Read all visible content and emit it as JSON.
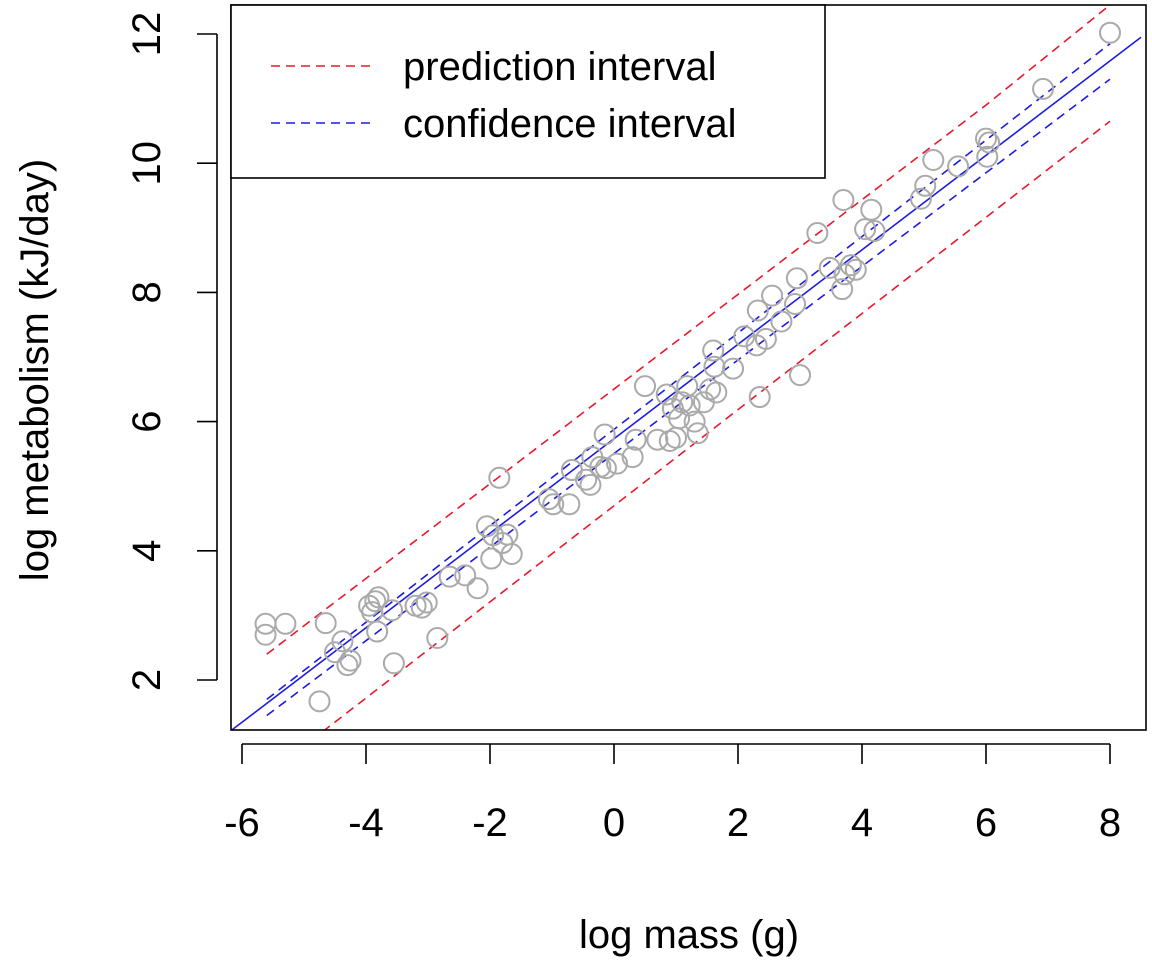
{
  "chart_data": {
    "type": "scatter",
    "title": "",
    "xlabel": "log mass (g)",
    "ylabel": "log metabolism (kJ/day)",
    "xlim": [
      -6.2,
      8.5
    ],
    "ylim": [
      1.2,
      12.45
    ],
    "xticks": [
      -6,
      -4,
      -2,
      0,
      2,
      4,
      6,
      8
    ],
    "yticks": [
      2,
      4,
      6,
      8,
      10,
      12
    ],
    "legend": {
      "position": "top-left",
      "entries": [
        {
          "label": "prediction interval",
          "color": "#e8192c",
          "style": "dashed"
        },
        {
          "label": "confidence interval",
          "color": "#1c1ce0",
          "style": "dashed"
        }
      ]
    },
    "colors": {
      "points": "#aaaaaa",
      "fit": "#1c1ce0",
      "confidence": "#1c1ce0",
      "prediction": "#e8192c"
    },
    "fit_line": {
      "x": [
        -6.2,
        8.5
      ],
      "y": [
        1.2,
        11.95
      ]
    },
    "confidence_band": {
      "upper": {
        "x": [
          -5.6,
          8.0
        ],
        "y": [
          1.7,
          11.85
        ]
      },
      "lower": {
        "x": [
          -5.6,
          8.0
        ],
        "y": [
          1.45,
          11.3
        ]
      }
    },
    "prediction_band": {
      "upper": {
        "x": [
          -5.6,
          6.0,
          8.0
        ],
        "y": [
          2.4,
          10.9,
          12.45
        ]
      },
      "lower": {
        "x": [
          -4.7,
          8.0
        ],
        "y": [
          1.2,
          10.65
        ]
      }
    },
    "points": [
      {
        "x": -5.62,
        "y": 2.87
      },
      {
        "x": -5.62,
        "y": 2.7
      },
      {
        "x": -5.3,
        "y": 2.87
      },
      {
        "x": -4.75,
        "y": 1.67
      },
      {
        "x": -4.65,
        "y": 2.88
      },
      {
        "x": -4.5,
        "y": 2.43
      },
      {
        "x": -4.38,
        "y": 2.6
      },
      {
        "x": -4.3,
        "y": 2.23
      },
      {
        "x": -4.25,
        "y": 2.3
      },
      {
        "x": -3.95,
        "y": 3.15
      },
      {
        "x": -3.9,
        "y": 3.05
      },
      {
        "x": -3.85,
        "y": 3.22
      },
      {
        "x": -3.8,
        "y": 3.28
      },
      {
        "x": -3.82,
        "y": 2.75
      },
      {
        "x": -3.58,
        "y": 3.08
      },
      {
        "x": -3.55,
        "y": 2.26
      },
      {
        "x": -3.2,
        "y": 3.15
      },
      {
        "x": -3.1,
        "y": 3.12
      },
      {
        "x": -3.02,
        "y": 3.2
      },
      {
        "x": -2.85,
        "y": 2.65
      },
      {
        "x": -2.65,
        "y": 3.6
      },
      {
        "x": -2.4,
        "y": 3.62
      },
      {
        "x": -2.2,
        "y": 3.42
      },
      {
        "x": -2.05,
        "y": 4.38
      },
      {
        "x": -1.98,
        "y": 3.88
      },
      {
        "x": -1.95,
        "y": 4.24
      },
      {
        "x": -1.85,
        "y": 5.13
      },
      {
        "x": -1.8,
        "y": 4.12
      },
      {
        "x": -1.72,
        "y": 4.25
      },
      {
        "x": -1.65,
        "y": 3.95
      },
      {
        "x": -1.05,
        "y": 4.8
      },
      {
        "x": -0.98,
        "y": 4.72
      },
      {
        "x": -0.72,
        "y": 4.72
      },
      {
        "x": -0.68,
        "y": 5.25
      },
      {
        "x": -0.45,
        "y": 5.1
      },
      {
        "x": -0.38,
        "y": 5.02
      },
      {
        "x": -0.35,
        "y": 5.45
      },
      {
        "x": -0.22,
        "y": 5.3
      },
      {
        "x": -0.15,
        "y": 5.8
      },
      {
        "x": -0.13,
        "y": 5.28
      },
      {
        "x": 0.05,
        "y": 5.35
      },
      {
        "x": 0.3,
        "y": 5.45
      },
      {
        "x": 0.35,
        "y": 5.72
      },
      {
        "x": 0.5,
        "y": 6.55
      },
      {
        "x": 0.7,
        "y": 5.72
      },
      {
        "x": 0.85,
        "y": 6.42
      },
      {
        "x": 0.9,
        "y": 5.7
      },
      {
        "x": 0.95,
        "y": 6.2
      },
      {
        "x": 1.0,
        "y": 5.75
      },
      {
        "x": 1.05,
        "y": 6.05
      },
      {
        "x": 1.1,
        "y": 6.3
      },
      {
        "x": 1.18,
        "y": 6.55
      },
      {
        "x": 1.22,
        "y": 6.25
      },
      {
        "x": 1.3,
        "y": 6.0
      },
      {
        "x": 1.35,
        "y": 5.82
      },
      {
        "x": 1.45,
        "y": 6.3
      },
      {
        "x": 1.55,
        "y": 6.5
      },
      {
        "x": 1.6,
        "y": 7.1
      },
      {
        "x": 1.62,
        "y": 6.85
      },
      {
        "x": 1.65,
        "y": 6.45
      },
      {
        "x": 1.92,
        "y": 6.82
      },
      {
        "x": 2.1,
        "y": 7.32
      },
      {
        "x": 2.3,
        "y": 7.18
      },
      {
        "x": 2.32,
        "y": 7.72
      },
      {
        "x": 2.35,
        "y": 6.38
      },
      {
        "x": 2.45,
        "y": 7.28
      },
      {
        "x": 2.55,
        "y": 7.95
      },
      {
        "x": 2.7,
        "y": 7.55
      },
      {
        "x": 2.92,
        "y": 7.82
      },
      {
        "x": 2.95,
        "y": 8.22
      },
      {
        "x": 3.0,
        "y": 6.72
      },
      {
        "x": 3.28,
        "y": 8.92
      },
      {
        "x": 3.48,
        "y": 8.38
      },
      {
        "x": 3.68,
        "y": 8.05
      },
      {
        "x": 3.72,
        "y": 8.28
      },
      {
        "x": 3.7,
        "y": 9.43
      },
      {
        "x": 3.82,
        "y": 8.42
      },
      {
        "x": 3.9,
        "y": 8.35
      },
      {
        "x": 4.05,
        "y": 8.98
      },
      {
        "x": 4.15,
        "y": 9.28
      },
      {
        "x": 4.2,
        "y": 8.95
      },
      {
        "x": 4.95,
        "y": 9.45
      },
      {
        "x": 5.02,
        "y": 9.65
      },
      {
        "x": 5.15,
        "y": 10.05
      },
      {
        "x": 5.55,
        "y": 9.95
      },
      {
        "x": 6.0,
        "y": 10.38
      },
      {
        "x": 6.02,
        "y": 10.1
      },
      {
        "x": 6.05,
        "y": 10.32
      },
      {
        "x": 6.92,
        "y": 11.15
      },
      {
        "x": 8.0,
        "y": 12.02
      }
    ]
  }
}
